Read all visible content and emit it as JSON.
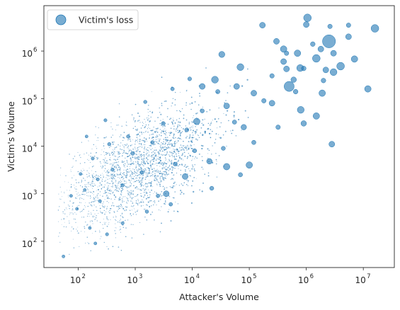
{
  "chart_data": {
    "type": "scatter",
    "title": "",
    "xlabel": "Attacker's Volume",
    "ylabel": "Victim's Volume",
    "x_scale": "log",
    "y_scale": "log",
    "xlim": [
      25,
      35000000
    ],
    "ylim": [
      28,
      9000000
    ],
    "grid": false,
    "legend": {
      "position": "top-left",
      "entries": [
        "Victim's loss"
      ]
    },
    "x_ticks": [
      {
        "base": "10",
        "exp": "2",
        "value": 100
      },
      {
        "base": "10",
        "exp": "3",
        "value": 1000
      },
      {
        "base": "10",
        "exp": "4",
        "value": 10000
      },
      {
        "base": "10",
        "exp": "5",
        "value": 100000
      },
      {
        "base": "10",
        "exp": "6",
        "value": 1000000
      },
      {
        "base": "10",
        "exp": "7",
        "value": 10000000
      }
    ],
    "y_ticks": [
      {
        "base": "10",
        "exp": "2",
        "value": 100
      },
      {
        "base": "10",
        "exp": "3",
        "value": 1000
      },
      {
        "base": "10",
        "exp": "4",
        "value": 10000
      },
      {
        "base": "10",
        "exp": "5",
        "value": 100000
      },
      {
        "base": "10",
        "exp": "6",
        "value": 1000000
      }
    ],
    "series": [
      {
        "name": "Victim's loss",
        "color": "#1f77b4",
        "alpha": 0.6,
        "points": [
          [
            1050000,
            5000000,
            0.35
          ],
          [
            2500000,
            1600000,
            1.0
          ],
          [
            16000000,
            3000000,
            0.35
          ],
          [
            4000000,
            480000,
            0.35
          ],
          [
            500000,
            180000,
            0.6
          ],
          [
            1500000,
            700000,
            0.35
          ],
          [
            3000000,
            360000,
            0.28
          ],
          [
            780000,
            440000,
            0.28
          ],
          [
            12000000,
            160000,
            0.25
          ],
          [
            7000000,
            680000,
            0.25
          ],
          [
            70000,
            460000,
            0.28
          ],
          [
            25000,
            250000,
            0.28
          ],
          [
            33000,
            850000,
            0.22
          ],
          [
            800000,
            58000,
            0.28
          ],
          [
            1500000,
            43000,
            0.25
          ],
          [
            2800000,
            11000,
            0.2
          ],
          [
            1900000,
            130000,
            0.25
          ],
          [
            40000,
            70000,
            0.2
          ],
          [
            12000,
            33000,
            0.25
          ],
          [
            170000,
            3500000,
            0.2
          ],
          [
            1000000,
            3600000,
            0.2
          ],
          [
            5500000,
            2000000,
            0.2
          ],
          [
            700000,
            900000,
            0.25
          ],
          [
            400000,
            1100000,
            0.25
          ],
          [
            120000,
            130000,
            0.2
          ],
          [
            40000,
            3700,
            0.25
          ],
          [
            3500,
            1000,
            0.2
          ],
          [
            100000,
            4000,
            0.25
          ],
          [
            60000,
            180000,
            0.2
          ],
          [
            250000,
            80000,
            0.2
          ],
          [
            900000,
            30000,
            0.18
          ],
          [
            3000000,
            900000,
            0.2
          ],
          [
            300000,
            1600000,
            0.2
          ],
          [
            450000,
            420000,
            0.2
          ],
          [
            1800000,
            1100000,
            0.2
          ],
          [
            7500,
            2300,
            0.2
          ],
          [
            15000,
            180000,
            0.2
          ],
          [
            20000,
            4800,
            0.18
          ],
          [
            80000,
            25000,
            0.18
          ],
          [
            400000,
            600000,
            0.2
          ],
          [
            2200000,
            400000,
            0.2
          ],
          [
            600000,
            250000,
            0.18
          ]
        ],
        "cloud": [
          [
            95,
            480,
            0.05
          ],
          [
            160,
            190,
            0.05
          ],
          [
            55,
            48,
            0.05
          ],
          [
            200,
            90,
            0.05
          ],
          [
            130,
            1200,
            0.05
          ],
          [
            320,
            140,
            0.06
          ],
          [
            75,
            900,
            0.05
          ],
          [
            110,
            2600,
            0.05
          ],
          [
            240,
            700,
            0.06
          ],
          [
            180,
            5500,
            0.06
          ],
          [
            400,
            3200,
            0.07
          ],
          [
            600,
            1500,
            0.07
          ],
          [
            900,
            7000,
            0.08
          ],
          [
            1300,
            2800,
            0.08
          ],
          [
            2000,
            12000,
            0.08
          ],
          [
            750,
            16000,
            0.07
          ],
          [
            350,
            11000,
            0.07
          ],
          [
            1600,
            420,
            0.07
          ],
          [
            2500,
            900,
            0.08
          ],
          [
            3100,
            30000,
            0.09
          ],
          [
            5000,
            4200,
            0.09
          ],
          [
            4500,
            160000,
            0.08
          ],
          [
            8000,
            22000,
            0.1
          ],
          [
            11000,
            8000,
            0.1
          ],
          [
            15000,
            55000,
            0.1
          ],
          [
            22000,
            1300,
            0.1
          ],
          [
            9000,
            260000,
            0.09
          ],
          [
            28000,
            140000,
            0.11
          ],
          [
            35000,
            9000,
            0.1
          ],
          [
            55000,
            32000,
            0.11
          ],
          [
            70000,
            2500,
            0.11
          ],
          [
            120000,
            12000,
            0.11
          ],
          [
            180000,
            90000,
            0.12
          ],
          [
            250000,
            300000,
            0.12
          ],
          [
            320000,
            25000,
            0.12
          ],
          [
            450000,
            900000,
            0.12
          ],
          [
            650000,
            140000,
            0.13
          ],
          [
            900000,
            430000,
            0.13
          ],
          [
            1300000,
            1400000,
            0.13
          ],
          [
            2000000,
            240000,
            0.13
          ],
          [
            2600000,
            3300000,
            0.12
          ],
          [
            5500000,
            3500000,
            0.12
          ],
          [
            300,
            35000,
            0.06
          ],
          [
            1500,
            85000,
            0.07
          ],
          [
            600,
            240,
            0.06
          ],
          [
            220,
            2000,
            0.06
          ],
          [
            140,
            16000,
            0.05
          ],
          [
            4200,
            600,
            0.08
          ]
        ]
      }
    ]
  }
}
